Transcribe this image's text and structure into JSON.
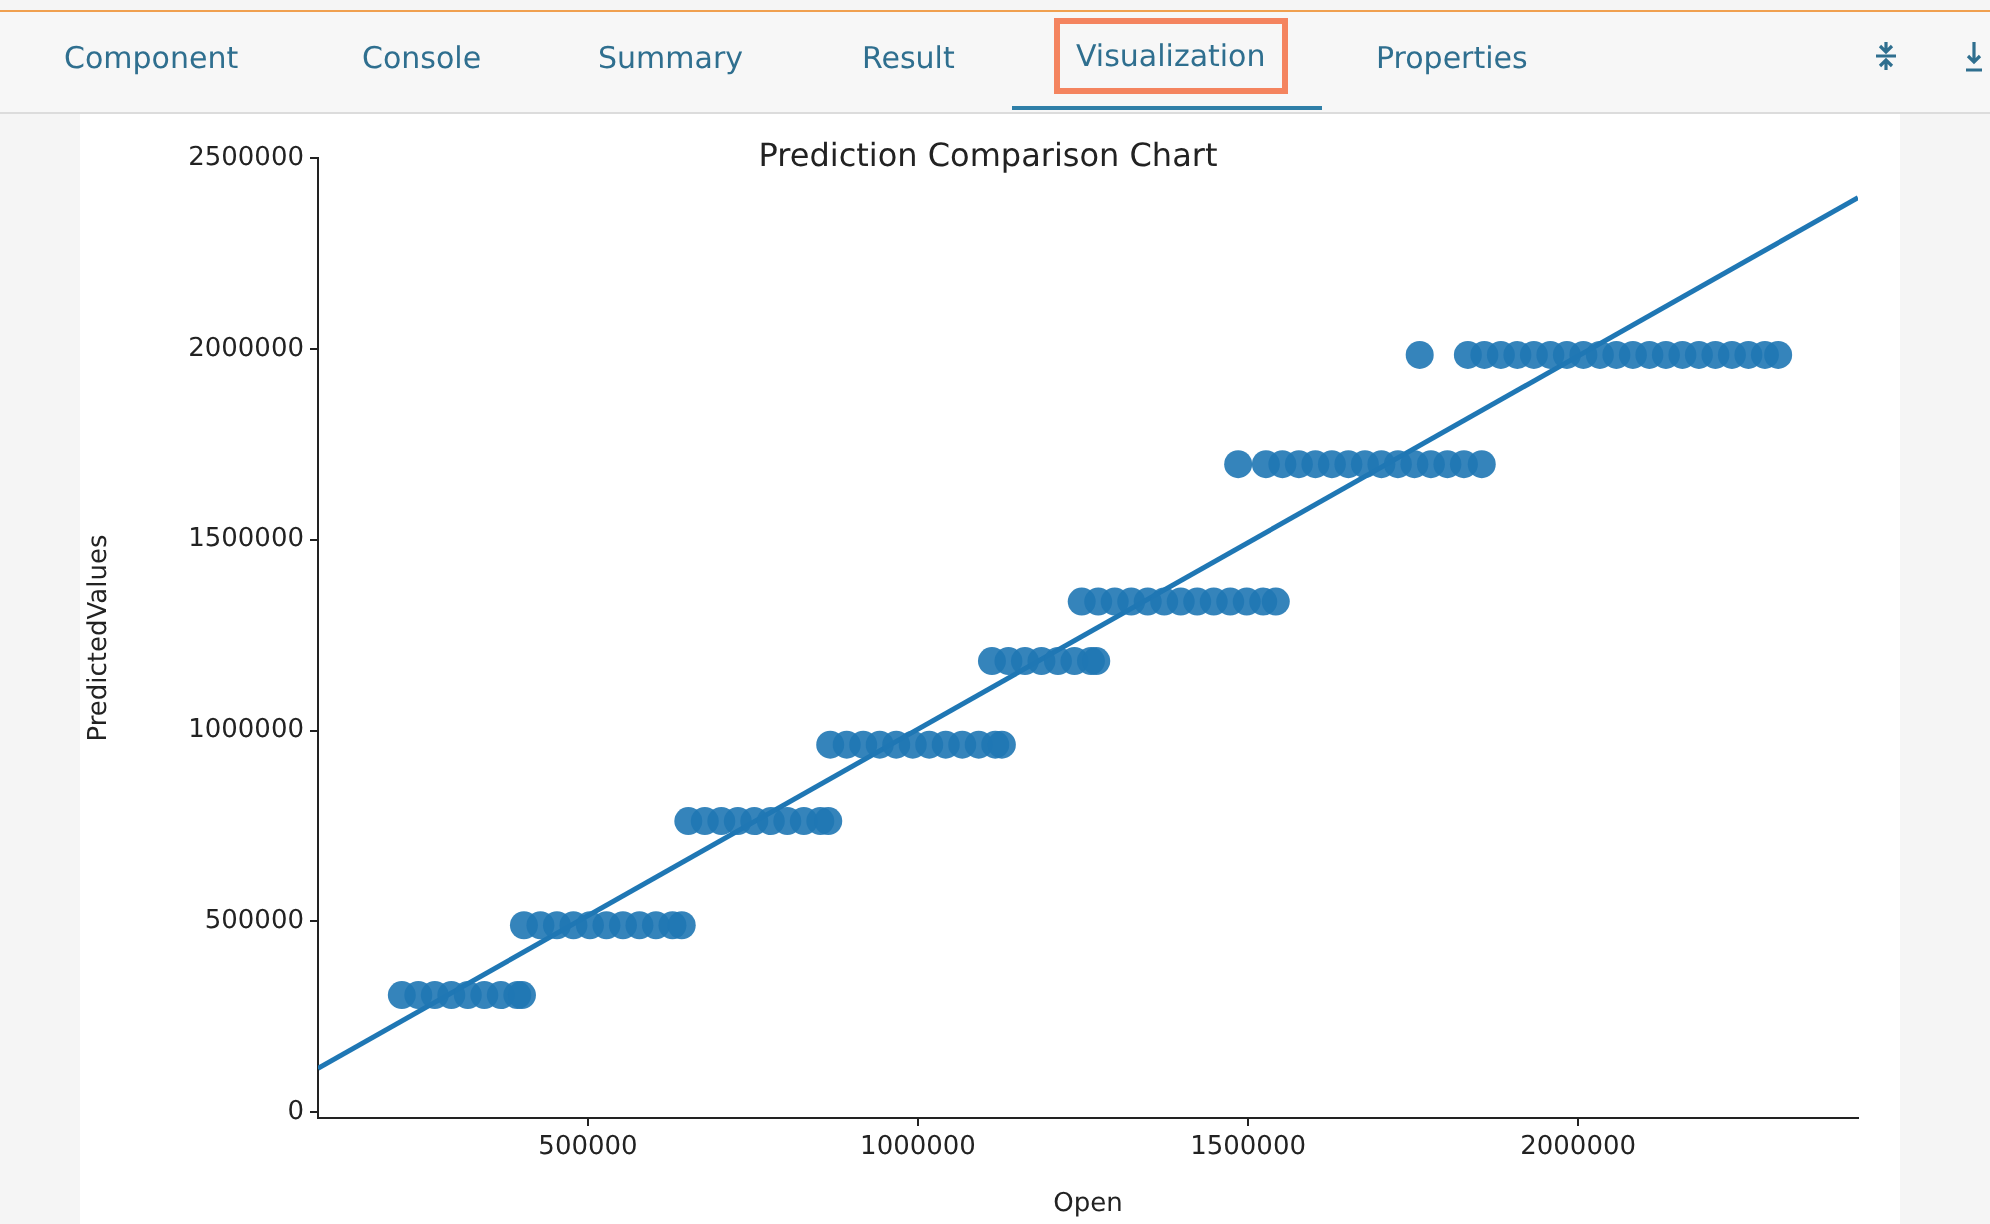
{
  "chart_data": {
    "type": "scatter",
    "title": "Prediction Comparison Chart",
    "xlabel": "Open",
    "ylabel": "PredictedValues",
    "annotations": [
      "Component",
      "Console",
      "Summary",
      "Result",
      "Visualization",
      "Properties"
    ],
    "xlim": [
      91000,
      2424000
    ],
    "xticks": [
      500000,
      1000000,
      1500000,
      2000000
    ],
    "ylim": [
      -15000,
      2500000
    ],
    "yticks": [
      0,
      500000,
      1000000,
      1500000,
      2000000,
      2500000
    ],
    "grid": false,
    "legend": false,
    "marker": "circle",
    "series": [
      {
        "color": "#1f77b4",
        "x": [
          218000,
          243000,
          268000,
          293000,
          318000,
          343000,
          368000,
          393000,
          400000,
          403000,
          428000,
          453000,
          478000,
          503000,
          528000,
          553000,
          578000,
          603000,
          628000,
          642000,
          652000,
          677000,
          702000,
          727000,
          752000,
          777000,
          802000,
          827000,
          852000,
          864000,
          867000,
          892000,
          917000,
          942000,
          967000,
          992000,
          1017000,
          1042000,
          1067000,
          1092000,
          1117000,
          1127000,
          1112000,
          1137000,
          1162000,
          1187000,
          1212000,
          1237000,
          1262000,
          1270000,
          1248000,
          1273000,
          1298000,
          1323000,
          1348000,
          1373000,
          1398000,
          1423000,
          1448000,
          1473000,
          1498000,
          1523000,
          1542000,
          1485000,
          1527000,
          1552000,
          1577000,
          1602000,
          1627000,
          1652000,
          1677000,
          1702000,
          1727000,
          1752000,
          1777000,
          1802000,
          1827000,
          1854000,
          1760000,
          1833000,
          1858000,
          1883000,
          1908000,
          1933000,
          1958000,
          1983000,
          2008000,
          2033000,
          2058000,
          2083000,
          2108000,
          2133000,
          2158000,
          2183000,
          2208000,
          2233000,
          2258000,
          2283000,
          2303000
        ],
        "values": [
          307000,
          307000,
          307000,
          307000,
          307000,
          307000,
          307000,
          307000,
          307000,
          490000,
          490000,
          490000,
          490000,
          490000,
          490000,
          490000,
          490000,
          490000,
          490000,
          490000,
          763000,
          763000,
          763000,
          763000,
          763000,
          763000,
          763000,
          763000,
          763000,
          763000,
          963000,
          963000,
          963000,
          963000,
          963000,
          963000,
          963000,
          963000,
          963000,
          963000,
          963000,
          963000,
          1182000,
          1182000,
          1182000,
          1182000,
          1182000,
          1182000,
          1182000,
          1182000,
          1338000,
          1338000,
          1338000,
          1338000,
          1338000,
          1338000,
          1338000,
          1338000,
          1338000,
          1338000,
          1338000,
          1338000,
          1338000,
          1698000,
          1698000,
          1698000,
          1698000,
          1698000,
          1698000,
          1698000,
          1698000,
          1698000,
          1698000,
          1698000,
          1698000,
          1698000,
          1698000,
          1698000,
          1984000,
          1984000,
          1984000,
          1984000,
          1984000,
          1984000,
          1984000,
          1984000,
          1984000,
          1984000,
          1984000,
          1984000,
          1984000,
          1984000,
          1984000,
          1984000,
          1984000,
          1984000,
          1984000,
          1984000,
          1984000
        ]
      },
      {
        "type": "line",
        "marker": "none",
        "color": "#1f77b4",
        "x": [
          91000,
          2424000
        ],
        "values": [
          115000,
          2396000
        ]
      }
    ]
  }
}
